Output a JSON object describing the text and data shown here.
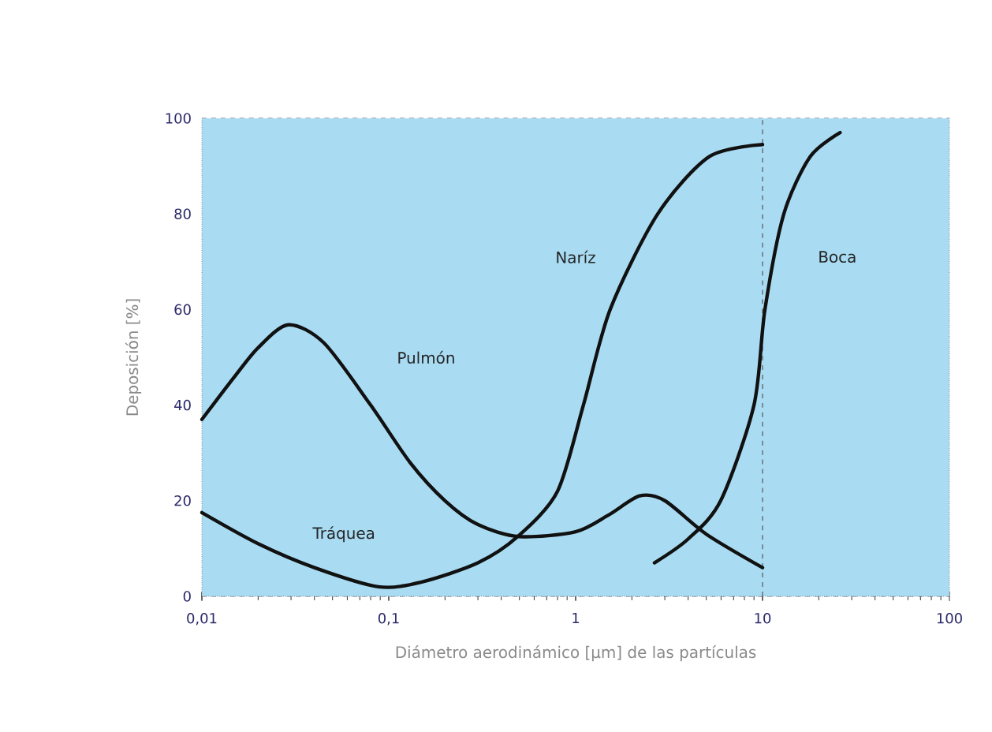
{
  "chart_data": {
    "type": "line",
    "xlabel": "Diámetro aerodinámico [µm] de las partículas",
    "ylabel": "Deposición [%]",
    "log": "x",
    "xlim": [
      0.01,
      100
    ],
    "ylim": [
      0,
      100
    ],
    "xticks": [
      {
        "value": 0.01,
        "label": "0,01"
      },
      {
        "value": 0.1,
        "label": "0,1"
      },
      1,
      10,
      100
    ],
    "yticks": [
      0,
      20,
      40,
      60,
      80,
      100
    ],
    "grid": "y",
    "series": [
      {
        "color": "#111111",
        "x": [
          0.01,
          0.015,
          0.02,
          0.029,
          0.045,
          0.08,
          0.13,
          0.2,
          0.3,
          0.5,
          1,
          1.5,
          2.2,
          3,
          5,
          10
        ],
        "values": [
          37,
          46,
          52,
          56.8,
          53,
          40,
          28,
          20,
          15,
          12.5,
          13.5,
          17,
          21,
          20,
          13,
          6
        ]
      },
      {
        "color": "#111111",
        "x": [
          0.01,
          0.02,
          0.04,
          0.088,
          0.15,
          0.3,
          0.49,
          0.8,
          1.1,
          1.53,
          2.75,
          5.2,
          10
        ],
        "values": [
          17.5,
          11,
          6,
          2,
          3,
          7,
          12.5,
          22,
          40,
          60,
          80,
          92,
          94.5
        ]
      },
      {
        "color": "#111111",
        "x": [
          2.64,
          4,
          5.97,
          9,
          10.3,
          13,
          18,
          26
        ],
        "values": [
          7,
          12,
          20,
          40,
          60,
          80,
          92,
          97
        ]
      }
    ],
    "ref_lines": [
      {
        "axis": "x",
        "value": 10,
        "color": "#555555",
        "line_style": "dashed"
      }
    ],
    "annotations": [
      "Pulmón",
      "Tráquea",
      "Naríz",
      "Boca"
    ]
  }
}
